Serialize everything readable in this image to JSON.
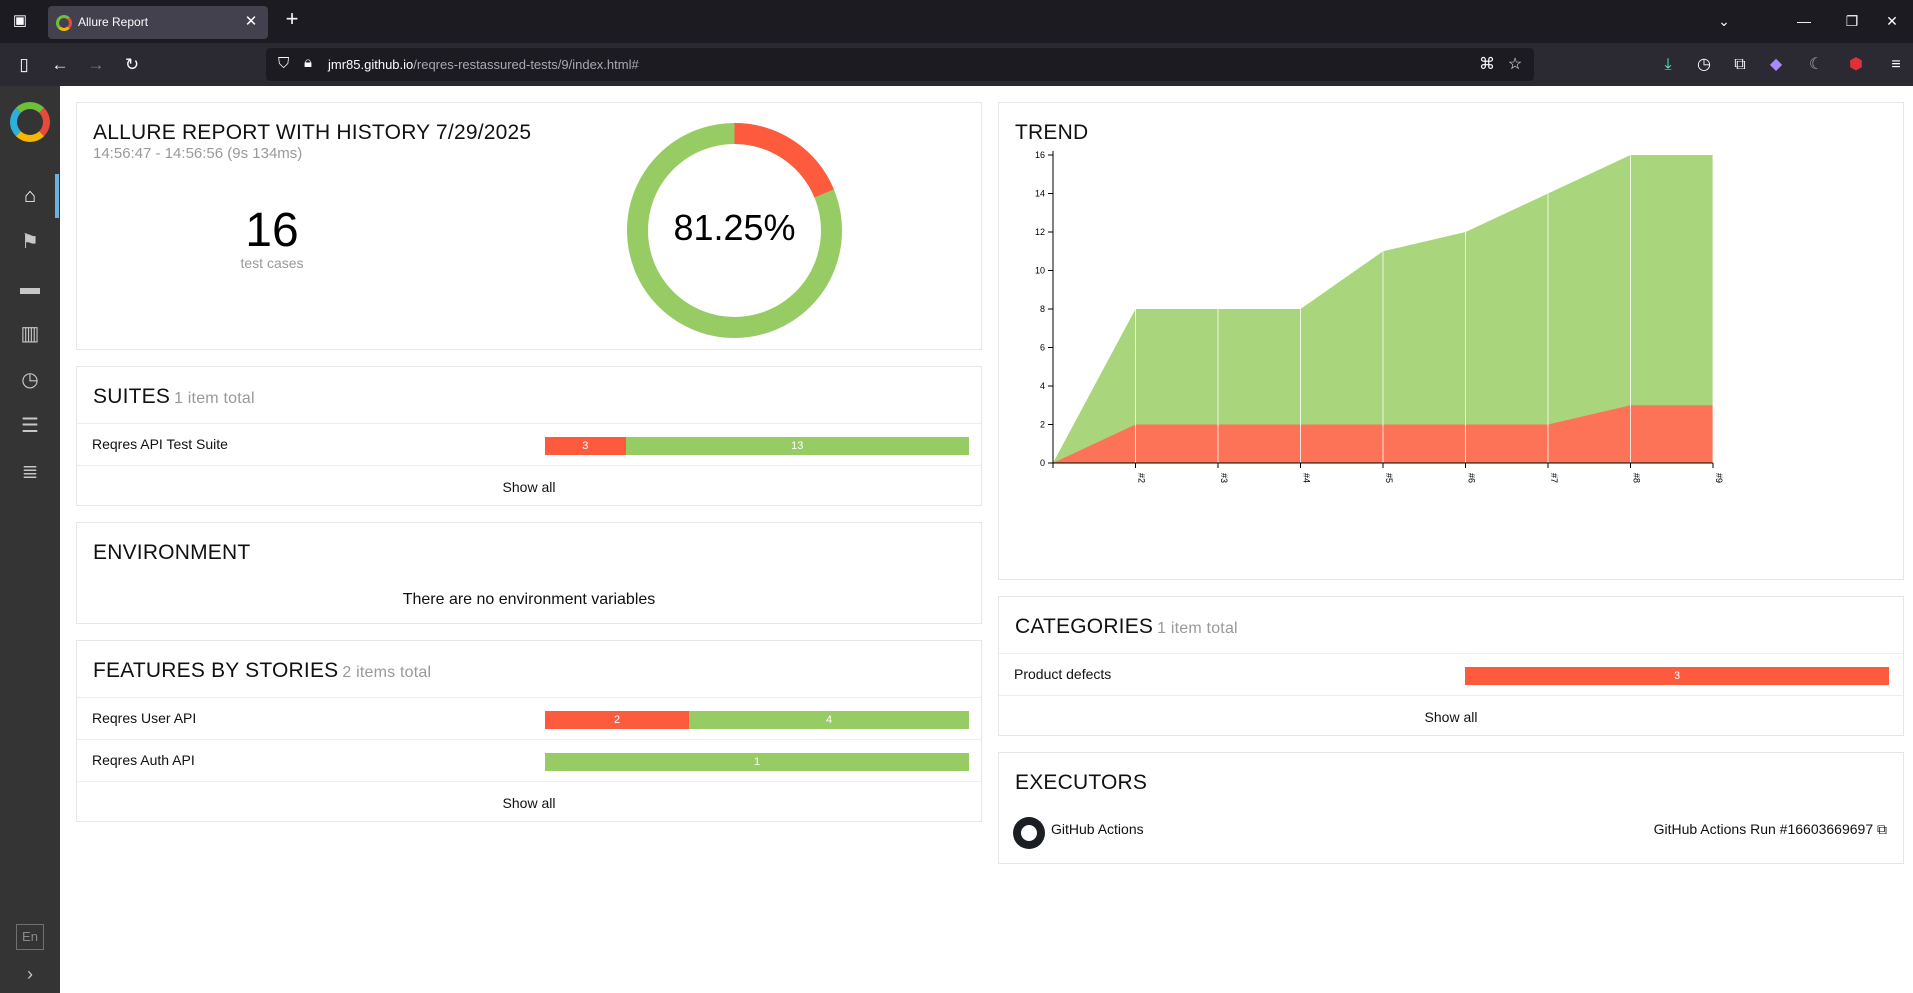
{
  "browser": {
    "tab_title": "Allure Report",
    "url_host": "jmr85.github.io",
    "url_path": "/reqres-restassured-tests/9/index.html#"
  },
  "sidebar": {
    "items": [
      {
        "icon": "home-icon"
      },
      {
        "icon": "flag-icon"
      },
      {
        "icon": "briefcase-icon"
      },
      {
        "icon": "chart-icon"
      },
      {
        "icon": "clock-icon"
      },
      {
        "icon": "list-icon"
      },
      {
        "icon": "timeline-icon"
      }
    ],
    "language": "En"
  },
  "summary": {
    "title": "ALLURE REPORT WITH HISTORY 7/29/2025",
    "time_range": "14:56:47 - 14:56:56 (9s 134ms)",
    "test_count": "16",
    "test_count_label": "test cases",
    "pass_rate": "81.25%",
    "passed": 13,
    "failed": 3
  },
  "suites": {
    "title": "SUITES",
    "count": "1 item total",
    "rows": [
      {
        "name": "Reqres API Test Suite",
        "failed": "3",
        "passed": "13"
      }
    ],
    "show_all": "Show all"
  },
  "environment": {
    "title": "ENVIRONMENT",
    "empty": "There are no environment variables"
  },
  "features": {
    "title": "FEATURES BY STORIES",
    "count": "2 items total",
    "rows": [
      {
        "name": "Reqres User API",
        "failed": "2",
        "passed": "4"
      },
      {
        "name": "Reqres Auth API",
        "failed": "",
        "passed": "1"
      }
    ],
    "show_all": "Show all"
  },
  "trend": {
    "title": "TREND"
  },
  "categories": {
    "title": "CATEGORIES",
    "count": "1 item total",
    "rows": [
      {
        "name": "Product defects",
        "value": "3"
      }
    ],
    "show_all": "Show all"
  },
  "executors": {
    "title": "EXECUTORS",
    "name": "GitHub Actions",
    "link": "GitHub Actions Run #16603669697"
  },
  "colors": {
    "failed": "#fd5a3e",
    "passed": "#97cc64",
    "trend_failed": "#fd7358",
    "trend_passed": "#a9d67c"
  },
  "chart_data": {
    "type": "area",
    "title": "TREND",
    "categories": [
      "",
      "#2",
      "#3",
      "#4",
      "#5",
      "#6",
      "#7",
      "#8",
      "#9"
    ],
    "series": [
      {
        "name": "failed",
        "values": [
          0,
          2,
          2,
          2,
          2,
          2,
          2,
          3,
          3
        ]
      },
      {
        "name": "passed",
        "values": [
          0,
          6,
          6,
          6,
          9,
          10,
          12,
          13,
          13
        ]
      }
    ],
    "totals": [
      0,
      8,
      8,
      8,
      11,
      12,
      14,
      16,
      16
    ],
    "ylim": [
      0,
      16
    ],
    "yticks": [
      0,
      2,
      4,
      6,
      8,
      10,
      12,
      14,
      16
    ]
  }
}
